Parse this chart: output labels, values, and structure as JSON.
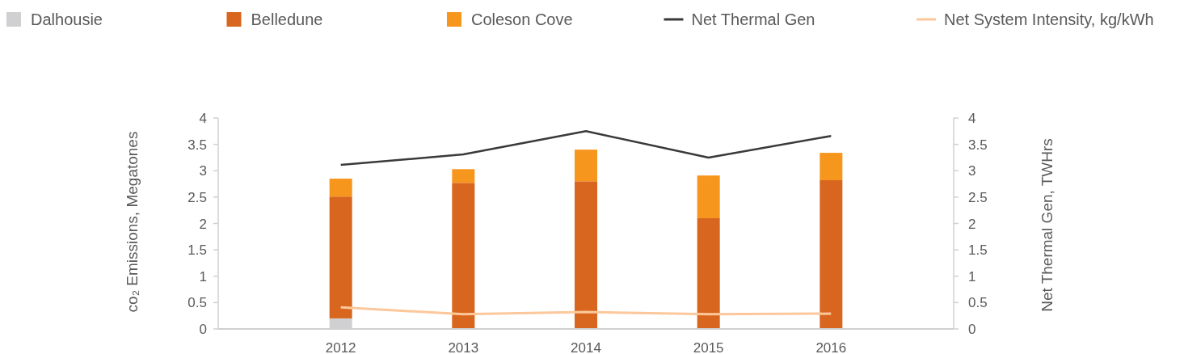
{
  "chart_data": {
    "type": "bar",
    "stacked": true,
    "categories": [
      "2012",
      "2013",
      "2014",
      "2015",
      "2016"
    ],
    "ylabel": "co₂ Emissions, Megatones",
    "y2label": "Net Thermal Gen, TWHrs",
    "ylim": [
      0,
      4
    ],
    "yticks": [
      0,
      0.5,
      1,
      1.5,
      2,
      2.5,
      3,
      3.5,
      4
    ],
    "y2lim": [
      0,
      4
    ],
    "y2ticks": [
      0,
      0.5,
      1,
      1.5,
      2,
      2.5,
      3,
      3.5,
      4
    ],
    "legend": "top",
    "grid": false,
    "series": [
      {
        "name": "Dalhousie",
        "color": "#d0d0d2",
        "values": [
          0.2,
          0,
          0,
          0,
          0
        ]
      },
      {
        "name": "Belledune",
        "color": "#d9661f",
        "values": [
          2.31,
          2.77,
          2.8,
          2.1,
          2.82
        ]
      },
      {
        "name": "Coleson Cove",
        "color": "#f7961d",
        "values": [
          0.34,
          0.26,
          0.6,
          0.81,
          0.52
        ]
      },
      {
        "name": "Net Thermal Gen",
        "type": "line",
        "axis": "y2",
        "color": "#3a3a3a",
        "values": [
          3.11,
          3.31,
          3.75,
          3.25,
          3.66
        ]
      },
      {
        "name": "Net System Intensity, kg/kWh",
        "type": "line",
        "color": "#fcc89b",
        "values": [
          0.41,
          0.28,
          0.32,
          0.28,
          0.29
        ]
      }
    ]
  }
}
